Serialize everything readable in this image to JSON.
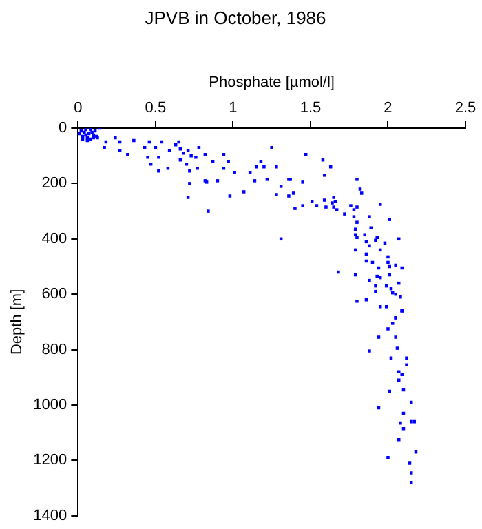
{
  "chart_data": {
    "type": "scatter",
    "title": "JPVB in October, 1986",
    "xlabel": "Phosphate [µmol/l]",
    "ylabel": "Depth [m]",
    "xlim": [
      0,
      2.5
    ],
    "xticks": [
      0,
      0.5,
      1,
      1.5,
      2,
      2.5
    ],
    "ylim": [
      1400,
      0
    ],
    "yticks": [
      0,
      200,
      400,
      600,
      800,
      1000,
      1200,
      1400
    ],
    "grid": false,
    "legend": false,
    "marker": "square",
    "series": [
      {
        "color": "#0000ff",
        "x": [
          0.01,
          0.02,
          0.03,
          0.04,
          0.05,
          0.05,
          0.06,
          0.07,
          0.08,
          0.08,
          0.09,
          0.1,
          0.11,
          0.12,
          0.14,
          0.03,
          0.06,
          0.1,
          0.125,
          0.18,
          0.24,
          0.17,
          0.27,
          0.27,
          0.32,
          0.36,
          0.43,
          0.46,
          0.45,
          0.47,
          0.52,
          0.52,
          0.5,
          0.54,
          0.58,
          0.59,
          0.63,
          0.65,
          0.66,
          0.68,
          0.66,
          0.71,
          0.7,
          0.72,
          0.72,
          0.71,
          0.73,
          0.76,
          0.77,
          0.78,
          0.82,
          0.82,
          0.83,
          0.84,
          0.87,
          0.9,
          0.94,
          0.94,
          0.97,
          0.98,
          1.01,
          1.07,
          1.11,
          1.14,
          1.15,
          1.18,
          1.2,
          1.22,
          1.25,
          1.28,
          1.36,
          1.37,
          1.31,
          1.28,
          1.31,
          1.36,
          1.39,
          1.4,
          1.45,
          1.45,
          1.47,
          1.51,
          1.54,
          1.58,
          1.59,
          1.59,
          1.6,
          1.63,
          1.64,
          1.65,
          1.66,
          1.65,
          1.68,
          1.67,
          1.72,
          1.76,
          1.78,
          1.78,
          1.8,
          1.8,
          1.82,
          1.83,
          1.8,
          1.79,
          1.79,
          1.8,
          1.79,
          1.79,
          1.8,
          1.85,
          1.86,
          1.86,
          1.86,
          1.86,
          1.88,
          1.89,
          1.88,
          1.88,
          1.9,
          1.92,
          1.92,
          1.92,
          1.93,
          1.93,
          1.95,
          1.94,
          1.95,
          1.95,
          1.95,
          1.98,
          1.99,
          1.99,
          2.0,
          2.0,
          2.01,
          2.01,
          2.01,
          2.02,
          2.03,
          2.05,
          2.05,
          2.07,
          2.07,
          2.08,
          2.09,
          2.09,
          2.05,
          2.09,
          2.05,
          2.03,
          2.0,
          2.05,
          1.94,
          1.88,
          2.06,
          2.12,
          2.12,
          2.02,
          2.09,
          2.07,
          2.07,
          2.1,
          2.01,
          2.15,
          1.94,
          2.08,
          2.1,
          2.15,
          2.17,
          2.1,
          2.07,
          2.18,
          2.0,
          2.14,
          2.15,
          2.15
        ],
        "values": [
          20,
          10,
          30,
          15,
          5,
          25,
          35,
          20,
          5,
          40,
          15,
          25,
          10,
          30,
          0,
          40,
          45,
          35,
          35,
          50,
          35,
          70,
          50,
          80,
          95,
          45,
          70,
          50,
          105,
          130,
          105,
          155,
          70,
          50,
          145,
          80,
          60,
          50,
          75,
          90,
          115,
          80,
          130,
          155,
          200,
          250,
          100,
          105,
          145,
          70,
          95,
          190,
          195,
          300,
          120,
          190,
          145,
          95,
          120,
          245,
          160,
          230,
          160,
          190,
          140,
          120,
          140,
          185,
          70,
          140,
          185,
          185,
          210,
          240,
          400,
          245,
          235,
          290,
          195,
          280,
          95,
          265,
          280,
          115,
          170,
          260,
          285,
          140,
          270,
          285,
          265,
          250,
          520,
          295,
          310,
          280,
          295,
          320,
          285,
          185,
          220,
          235,
          340,
          365,
          385,
          395,
          440,
          530,
          625,
          385,
          410,
          455,
          480,
          620,
          320,
          360,
          425,
          550,
          485,
          405,
          590,
          570,
          535,
          395,
          275,
          505,
          440,
          540,
          645,
          415,
          570,
          645,
          485,
          465,
          530,
          330,
          500,
          580,
          595,
          495,
          600,
          560,
          400,
          610,
          505,
          660,
          685,
          660,
          685,
          705,
          725,
          755,
          755,
          805,
          795,
          830,
          855,
          830,
          890,
          880,
          910,
          945,
          950,
          990,
          1010,
          1065,
          1030,
          1060,
          1060,
          1085,
          1125,
          1170,
          1190,
          1210,
          1245,
          1280
        ]
      }
    ]
  }
}
